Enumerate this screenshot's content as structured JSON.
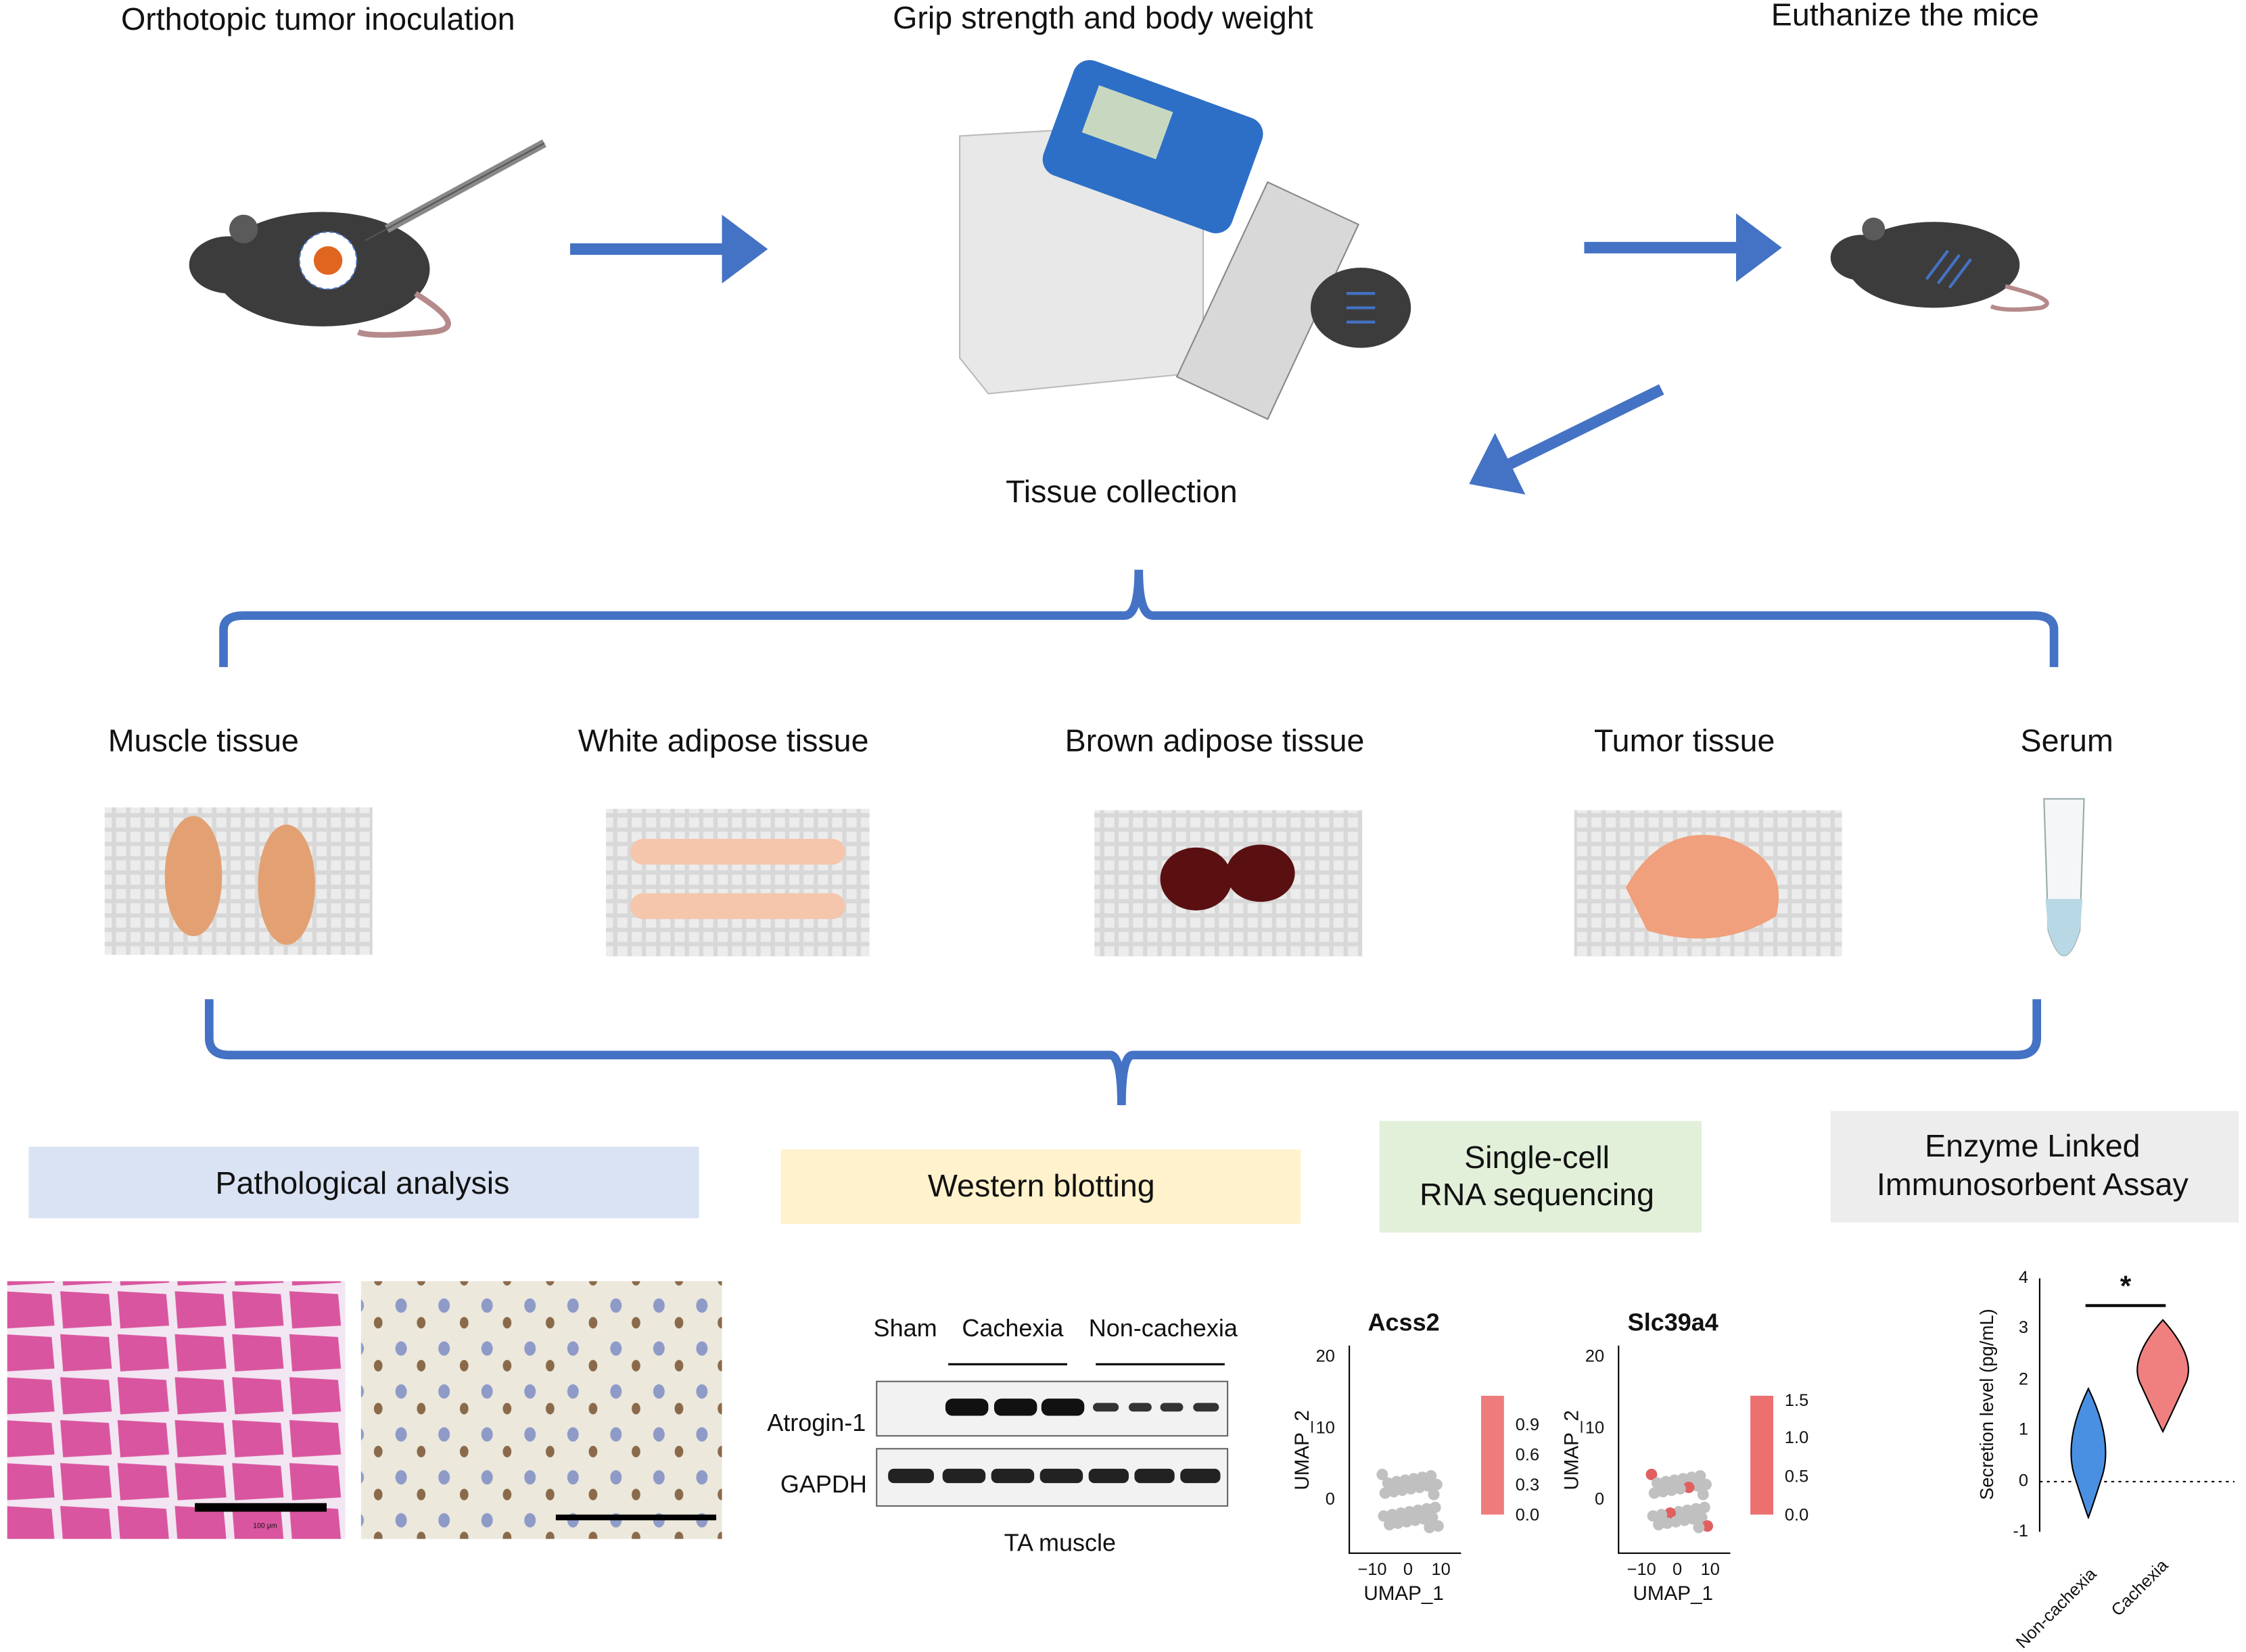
{
  "steps": {
    "inoculation": "Orthotopic tumor inoculation",
    "grip": "Grip strength and body weight",
    "euthanize": "Euthanize the mice",
    "collection": "Tissue collection"
  },
  "tissues": [
    "Muscle tissue",
    "White adipose tissue",
    "Brown adipose tissue",
    "Tumor tissue",
    "Serum"
  ],
  "analyses": {
    "pathology": [
      "Pathological analysis"
    ],
    "western": [
      "Western blotting"
    ],
    "scrnaseq": [
      "Single-cell",
      "RNA sequencing"
    ],
    "elisa": [
      "Enzyme Linked",
      "Immunosorbent Assay"
    ]
  },
  "histology": {
    "scale_bar": "100 μm"
  },
  "western_blot": {
    "groups": [
      "Sham",
      "Cachexia",
      "Non-cachexia"
    ],
    "proteins": [
      "Atrogin-1",
      "GAPDH"
    ],
    "caption": "TA muscle"
  },
  "umap": [
    {
      "gene": "Acss2",
      "x_label": "UMAP_1",
      "y_label": "UMAP_2",
      "yticks": [
        "20",
        "10",
        "0"
      ],
      "xticks": [
        "−10",
        "0",
        "10"
      ],
      "colorbar": [
        "0.9",
        "0.6",
        "0.3",
        "0.0"
      ]
    },
    {
      "gene": "Slc39a4",
      "x_label": "UMAP_1",
      "y_label": "UMAP_2",
      "yticks": [
        "20",
        "10",
        "0"
      ],
      "xticks": [
        "−10",
        "0",
        "10"
      ],
      "colorbar": [
        "1.5",
        "1.0",
        "0.5",
        "0.0"
      ]
    }
  ],
  "elisa_plot": {
    "y_label": "Secretion level (pg/mL)",
    "yticks": [
      "4",
      "3",
      "2",
      "1",
      "0",
      "-1"
    ],
    "groups": [
      "Non-cachexia",
      "Cachexia"
    ],
    "significance": "*"
  }
}
